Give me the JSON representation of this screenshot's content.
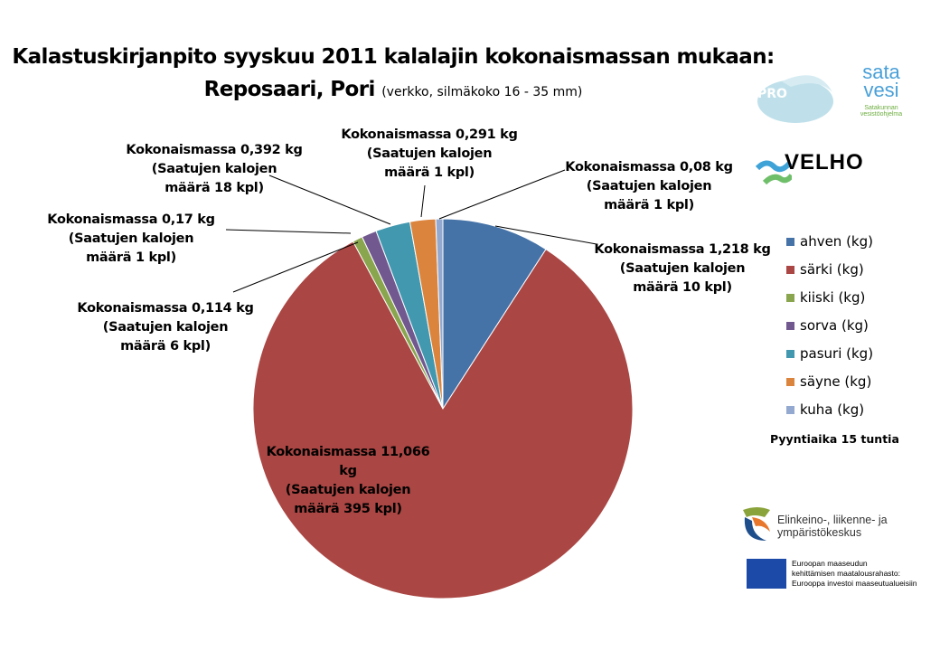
{
  "chart_data": {
    "type": "pie",
    "title": "Kalastuskirjanpito syyskuu 2011 kalalajin kokonaismassan mukaan:",
    "subtitle": "Reposaari, Pori",
    "subtitle_note": "(verkko, silmäkoko 16 - 35 mm)",
    "legend_position": "right",
    "slices": [
      {
        "name": "ahven (kg)",
        "value": 1.218,
        "color": "#4572A7",
        "label1": "Kokonaismassa 1,218 kg",
        "label2": "(Saatujen kalojen",
        "label3": "määrä 10 kpl)"
      },
      {
        "name": "särki (kg)",
        "value": 11.066,
        "color": "#AA4643",
        "label1": "Kokonaismassa 11,066",
        "label2": "kg",
        "label3": "(Saatujen kalojen",
        "label4": "määrä 395 kpl)"
      },
      {
        "name": "kiiski (kg)",
        "value": 0.114,
        "color": "#89A54E",
        "label1": "Kokonaismassa 0,114 kg",
        "label2": "(Saatujen kalojen",
        "label3": "määrä 6 kpl)"
      },
      {
        "name": "sorva (kg)",
        "value": 0.17,
        "color": "#71588F",
        "label1": "Kokonaismassa 0,17 kg",
        "label2": "(Saatujen kalojen",
        "label3": "määrä 1 kpl)"
      },
      {
        "name": "pasuri (kg)",
        "value": 0.392,
        "color": "#4198AF",
        "label1": "Kokonaismassa 0,392 kg",
        "label2": "(Saatujen kalojen",
        "label3": "määrä 18 kpl)"
      },
      {
        "name": "säyne (kg)",
        "value": 0.291,
        "color": "#DB843D",
        "label1": "Kokonaismassa 0,291 kg",
        "label2": "(Saatujen kalojen",
        "label3": "määrä 1 kpl)"
      },
      {
        "name": "kuha (kg)",
        "value": 0.08,
        "color": "#93A9CF",
        "label1": "Kokonaismassa 0,08 kg",
        "label2": "(Saatujen kalojen",
        "label3": "määrä 1 kpl)"
      }
    ],
    "note": "Pyyntiaika 15 tuntia"
  },
  "logos": {
    "pro": "PRO SAARISTOMERI",
    "satavesi": "sata vesi",
    "satavesi_sub": "Satakunnan vesistöohjelma",
    "velho": "VELHO",
    "ely": "Elinkeino-, liikenne- ja ympäristökeskus",
    "eu1": "Euroopan maaseudun",
    "eu2": "kehittämisen maatalousrahasto:",
    "eu3": "Eurooppa investoi maaseutualueisiin"
  }
}
